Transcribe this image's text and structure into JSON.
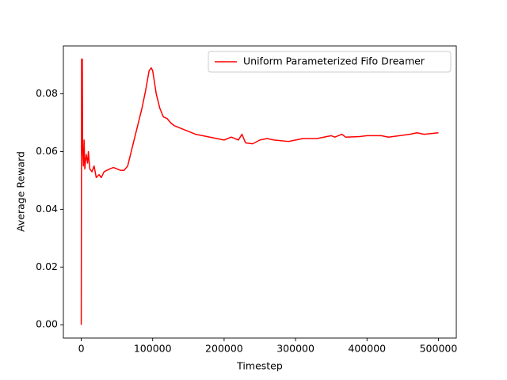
{
  "chart_data": {
    "type": "line",
    "x_label": "Timestep",
    "y_label": "Average Reward",
    "legend": "upper right",
    "xlim": [
      -25000,
      525000
    ],
    "xticks": [
      0,
      100000,
      200000,
      300000,
      400000,
      500000
    ],
    "ylim": [
      -0.0046,
      0.0966
    ],
    "yticks": [
      {
        "value": 0,
        "label": "0.00"
      },
      {
        "value": 0.02,
        "label": "0.02"
      },
      {
        "value": 0.04,
        "label": "0.04"
      },
      {
        "value": 0.06,
        "label": "0.06"
      },
      {
        "value": 0.08,
        "label": "0.08"
      }
    ],
    "x": [
      0,
      500,
      1000,
      1500,
      2000,
      3000,
      4000,
      5000,
      7000,
      9000,
      10000,
      12000,
      15000,
      18000,
      21000,
      25000,
      28000,
      32000,
      40000,
      45000,
      50000,
      55000,
      60000,
      65000,
      70000,
      75000,
      80000,
      85000,
      90000,
      95000,
      98000,
      100000,
      105000,
      110000,
      115000,
      120000,
      125000,
      130000,
      140000,
      150000,
      160000,
      170000,
      180000,
      200000,
      210000,
      220000,
      225000,
      230000,
      240000,
      250000,
      260000,
      270000,
      290000,
      300000,
      310000,
      330000,
      350000,
      355000,
      365000,
      370000,
      390000,
      400000,
      420000,
      430000,
      460000,
      470000,
      480000,
      500000
    ],
    "series": [
      {
        "name": "Uniform Parameterized Fifo Dreamer",
        "color": "#ff0000",
        "values": [
          0,
          0.092,
          0.075,
          0.092,
          0.06,
          0.055,
          0.064,
          0.054,
          0.059,
          0.056,
          0.06,
          0.054,
          0.053,
          0.055,
          0.051,
          0.052,
          0.051,
          0.053,
          0.054,
          0.0545,
          0.054,
          0.0535,
          0.0535,
          0.055,
          0.06,
          0.065,
          0.07,
          0.075,
          0.081,
          0.088,
          0.089,
          0.088,
          0.08,
          0.075,
          0.072,
          0.0715,
          0.07,
          0.069,
          0.068,
          0.067,
          0.066,
          0.0655,
          0.065,
          0.064,
          0.065,
          0.064,
          0.066,
          0.063,
          0.0627,
          0.064,
          0.0645,
          0.064,
          0.0635,
          0.064,
          0.0645,
          0.0645,
          0.0655,
          0.065,
          0.066,
          0.065,
          0.0652,
          0.0655,
          0.0655,
          0.065,
          0.066,
          0.0665,
          0.066,
          0.0665
        ]
      }
    ]
  }
}
